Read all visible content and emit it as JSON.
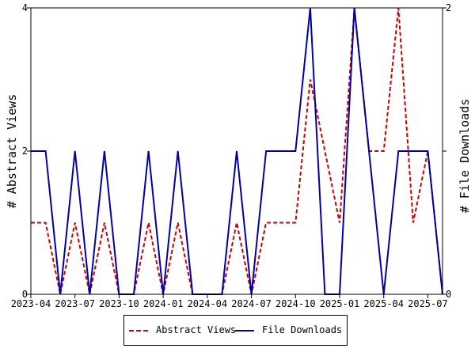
{
  "chart_data": {
    "type": "line",
    "x": [
      "2023-04",
      "2023-05",
      "2023-06",
      "2023-07",
      "2023-08",
      "2023-09",
      "2023-10",
      "2023-11",
      "2023-12",
      "2024-01",
      "2024-02",
      "2024-03",
      "2024-04",
      "2024-05",
      "2024-06",
      "2024-07",
      "2024-08",
      "2024-09",
      "2024-10",
      "2024-11",
      "2024-12",
      "2025-01",
      "2025-02",
      "2025-03",
      "2025-04",
      "2025-05",
      "2025-06",
      "2025-07",
      "2025-08"
    ],
    "x_tick_labels": [
      "2023-04",
      "2023-07",
      "2023-10",
      "2024-01",
      "2024-04",
      "2024-07",
      "2024-10",
      "2025-01",
      "2025-04",
      "2025-07"
    ],
    "series": [
      {
        "name": "Abstract Views",
        "axis": "left",
        "color": "#cc0000",
        "dash": true,
        "values": [
          1,
          1,
          0,
          1,
          0,
          1,
          0,
          0,
          1,
          0,
          1,
          0,
          0,
          0,
          1,
          0,
          1,
          1,
          1,
          3,
          2,
          1,
          4,
          2,
          2,
          4,
          1,
          2,
          0
        ]
      },
      {
        "name": "File Downloads",
        "axis": "right",
        "color": "#0000aa",
        "dash": false,
        "values": [
          1,
          1,
          0,
          1,
          0,
          1,
          0,
          0,
          1,
          0,
          1,
          0,
          0,
          0,
          1,
          0,
          1,
          1,
          1,
          2,
          0,
          0,
          2,
          1,
          0,
          1,
          1,
          1,
          0
        ]
      }
    ],
    "y_left": {
      "label": "# Abstract Views",
      "ylim": [
        0,
        4
      ],
      "ticks": [
        0,
        2,
        4
      ]
    },
    "y_right": {
      "label": "# File Downloads",
      "ylim": [
        0,
        2
      ],
      "ticks": [
        0,
        1,
        2
      ],
      "tick_labels": [
        "0",
        "",
        "2"
      ]
    },
    "grid": false,
    "legend_position": "bottom"
  }
}
